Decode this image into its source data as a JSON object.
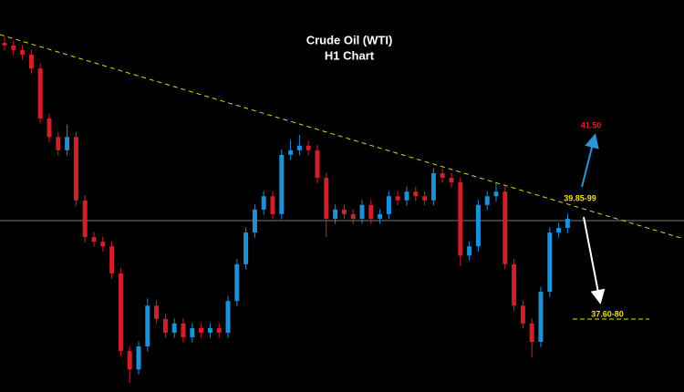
{
  "chart_data": {
    "type": "candlestick",
    "title": "Crude Oil (WTI)",
    "subtitle": "H1 Chart",
    "up_color": "#1f8fd6",
    "down_color": "#d0202a",
    "ylim": [
      36.27,
      43.94
    ],
    "open": [
      43.1,
      43.05,
      42.96,
      42.87,
      42.6,
      41.62,
      41.26,
      41.0,
      41.26,
      40.02,
      39.3,
      39.21,
      39.12,
      38.59,
      37.07,
      36.71,
      37.16,
      37.96,
      37.7,
      37.43,
      37.61,
      37.34,
      37.52,
      37.43,
      37.52,
      37.43,
      38.05,
      38.77,
      39.39,
      39.84,
      40.1,
      39.75,
      40.91,
      41.0,
      41.09,
      41.0,
      40.46,
      39.66,
      39.84,
      39.75,
      39.66,
      39.93,
      39.66,
      39.75,
      40.1,
      40.02,
      40.19,
      40.1,
      40.02,
      40.55,
      40.46,
      40.37,
      38.94,
      39.12,
      39.93,
      40.1,
      40.19,
      38.77,
      37.96,
      37.61,
      37.25,
      38.23,
      39.39,
      39.48
    ],
    "high": [
      43.22,
      43.15,
      43.06,
      42.97,
      42.7,
      41.72,
      41.36,
      41.5,
      41.36,
      40.12,
      39.4,
      39.31,
      39.22,
      38.69,
      37.17,
      37.26,
      38.1,
      38.06,
      37.8,
      37.71,
      37.71,
      37.62,
      37.62,
      37.62,
      37.62,
      38.15,
      38.87,
      39.49,
      39.94,
      40.2,
      40.2,
      41.01,
      41.2,
      41.3,
      41.19,
      41.1,
      40.56,
      39.94,
      39.94,
      39.85,
      40.03,
      40.03,
      39.85,
      40.2,
      40.2,
      40.29,
      40.29,
      40.2,
      40.65,
      40.65,
      40.56,
      40.47,
      39.22,
      40.03,
      40.2,
      40.35,
      40.29,
      38.87,
      38.06,
      37.71,
      38.33,
      39.49,
      39.58,
      39.76
    ],
    "low": [
      42.95,
      42.86,
      42.77,
      42.5,
      41.52,
      41.16,
      40.9,
      40.9,
      39.92,
      39.2,
      39.11,
      39.02,
      38.49,
      36.97,
      36.45,
      36.61,
      37.06,
      37.6,
      37.33,
      37.33,
      37.24,
      37.24,
      37.33,
      37.33,
      37.33,
      37.33,
      37.95,
      38.67,
      39.29,
      39.74,
      39.65,
      39.65,
      40.81,
      40.9,
      40.9,
      40.36,
      39.3,
      39.56,
      39.65,
      39.56,
      39.56,
      39.56,
      39.56,
      39.65,
      39.92,
      39.92,
      40.0,
      39.92,
      39.92,
      40.36,
      40.27,
      38.74,
      38.84,
      39.02,
      39.83,
      40.0,
      38.67,
      37.86,
      37.51,
      36.95,
      37.15,
      38.13,
      39.29,
      39.38
    ],
    "close": [
      43.05,
      42.96,
      42.87,
      42.6,
      41.62,
      41.26,
      41.0,
      41.26,
      40.02,
      39.3,
      39.21,
      39.12,
      38.59,
      37.07,
      36.71,
      37.16,
      37.96,
      37.7,
      37.43,
      37.61,
      37.34,
      37.52,
      37.43,
      37.52,
      37.43,
      38.05,
      38.77,
      39.39,
      39.84,
      40.1,
      39.75,
      40.91,
      41.0,
      41.09,
      41.0,
      40.46,
      39.66,
      39.84,
      39.75,
      39.66,
      39.93,
      39.66,
      39.75,
      40.1,
      40.02,
      40.19,
      40.1,
      40.02,
      40.55,
      40.46,
      40.37,
      38.94,
      39.12,
      39.93,
      40.1,
      40.19,
      38.77,
      37.96,
      37.61,
      37.25,
      38.23,
      39.39,
      39.48,
      39.66
    ],
    "annotations": {
      "upside_target": "41.50",
      "resistance": "39.85-99",
      "downside_target": "37.60-80"
    }
  }
}
